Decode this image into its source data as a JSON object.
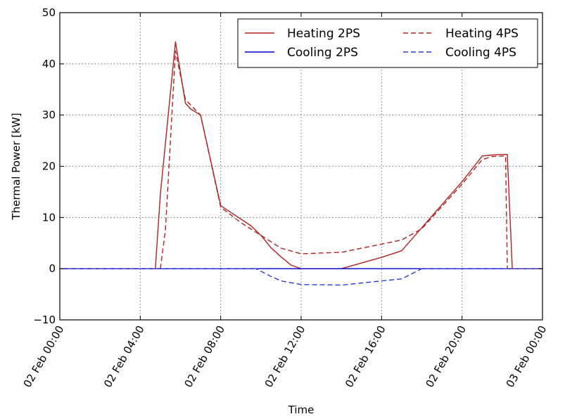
{
  "chart_data": {
    "type": "line",
    "xlabel": "Time",
    "ylabel": "Thermal Power [kW]",
    "xlim": [
      "2017-02-02 00:00",
      "2017-02-03 00:00"
    ],
    "ylim": [
      -10,
      50
    ],
    "grid": true,
    "legend_position": "top-right",
    "x_ticks": [
      {
        "value": "2017-02-02 00:00",
        "label": "02 Feb 00:00"
      },
      {
        "value": "2017-02-02 04:00",
        "label": "02 Feb 04:00"
      },
      {
        "value": "2017-02-02 08:00",
        "label": "02 Feb 08:00"
      },
      {
        "value": "2017-02-02 12:00",
        "label": "02 Feb 12:00"
      },
      {
        "value": "2017-02-02 16:00",
        "label": "02 Feb 16:00"
      },
      {
        "value": "2017-02-02 20:00",
        "label": "02 Feb 20:00"
      },
      {
        "value": "2017-02-03 00:00",
        "label": "03 Feb 00:00"
      }
    ],
    "y_ticks": [
      {
        "value": -10,
        "label": "−10"
      },
      {
        "value": 0,
        "label": "0"
      },
      {
        "value": 10,
        "label": "10"
      },
      {
        "value": 20,
        "label": "20"
      },
      {
        "value": 30,
        "label": "30"
      },
      {
        "value": 40,
        "label": "40"
      },
      {
        "value": 50,
        "label": "50"
      }
    ],
    "series": [
      {
        "name": "Heating 2PS",
        "color": "#b22222",
        "style": "solid",
        "points": [
          [
            "2017-02-02 00:00",
            0
          ],
          [
            "2017-02-02 04:45",
            0
          ],
          [
            "2017-02-02 05:00",
            14.5
          ],
          [
            "2017-02-02 05:45",
            44.3
          ],
          [
            "2017-02-02 06:15",
            32.3
          ],
          [
            "2017-02-02 06:30",
            31.2
          ],
          [
            "2017-02-02 07:00",
            30
          ],
          [
            "2017-02-02 08:00",
            12.3
          ],
          [
            "2017-02-02 08:30",
            11
          ],
          [
            "2017-02-02 09:30",
            8.4
          ],
          [
            "2017-02-02 10:00",
            6.5
          ],
          [
            "2017-02-02 10:30",
            4.1
          ],
          [
            "2017-02-02 11:00",
            2.3
          ],
          [
            "2017-02-02 11:30",
            0.7
          ],
          [
            "2017-02-02 12:00",
            0
          ],
          [
            "2017-02-02 14:00",
            0
          ],
          [
            "2017-02-02 16:00",
            2.2
          ],
          [
            "2017-02-02 17:00",
            3.5
          ],
          [
            "2017-02-02 19:00",
            12.5
          ],
          [
            "2017-02-02 20:00",
            17
          ],
          [
            "2017-02-02 21:00",
            22
          ],
          [
            "2017-02-02 21:30",
            22.2
          ],
          [
            "2017-02-02 22:00",
            22.3
          ],
          [
            "2017-02-02 22:15",
            22.3
          ],
          [
            "2017-02-02 22:30",
            0
          ],
          [
            "2017-02-03 00:00",
            0
          ]
        ]
      },
      {
        "name": "Cooling 2PS",
        "color": "#0000cc",
        "style": "solid",
        "points": [
          [
            "2017-02-02 00:00",
            0
          ],
          [
            "2017-02-03 00:00",
            0
          ]
        ]
      },
      {
        "name": "Heating 4PS",
        "color": "#b22222",
        "style": "dashed",
        "points": [
          [
            "2017-02-02 00:00",
            0
          ],
          [
            "2017-02-02 05:00",
            0
          ],
          [
            "2017-02-02 05:15",
            7.5
          ],
          [
            "2017-02-02 05:45",
            42.5
          ],
          [
            "2017-02-02 06:15",
            33
          ],
          [
            "2017-02-02 07:00",
            30
          ],
          [
            "2017-02-02 08:00",
            12
          ],
          [
            "2017-02-02 09:00",
            9
          ],
          [
            "2017-02-02 10:00",
            6.5
          ],
          [
            "2017-02-02 11:00",
            4
          ],
          [
            "2017-02-02 12:00",
            2.9
          ],
          [
            "2017-02-02 14:00",
            3.2
          ],
          [
            "2017-02-02 16:00",
            4.8
          ],
          [
            "2017-02-02 17:00",
            5.6
          ],
          [
            "2017-02-02 18:00",
            7.8
          ],
          [
            "2017-02-02 20:00",
            16.5
          ],
          [
            "2017-02-02 21:00",
            21.3
          ],
          [
            "2017-02-02 21:30",
            21.9
          ],
          [
            "2017-02-02 22:00",
            22
          ],
          [
            "2017-02-02 22:10",
            22
          ],
          [
            "2017-02-02 22:15",
            0
          ],
          [
            "2017-02-03 00:00",
            0
          ]
        ]
      },
      {
        "name": "Cooling 4PS",
        "color": "#2a3cd6",
        "style": "dashed",
        "points": [
          [
            "2017-02-02 00:00",
            0
          ],
          [
            "2017-02-02 09:45",
            0
          ],
          [
            "2017-02-02 10:30",
            -1.5
          ],
          [
            "2017-02-02 11:00",
            -2.4
          ],
          [
            "2017-02-02 12:00",
            -3.1
          ],
          [
            "2017-02-02 14:00",
            -3.2
          ],
          [
            "2017-02-02 16:00",
            -2.4
          ],
          [
            "2017-02-02 17:00",
            -2
          ],
          [
            "2017-02-02 18:00",
            0
          ],
          [
            "2017-02-03 00:00",
            0
          ]
        ]
      }
    ]
  }
}
